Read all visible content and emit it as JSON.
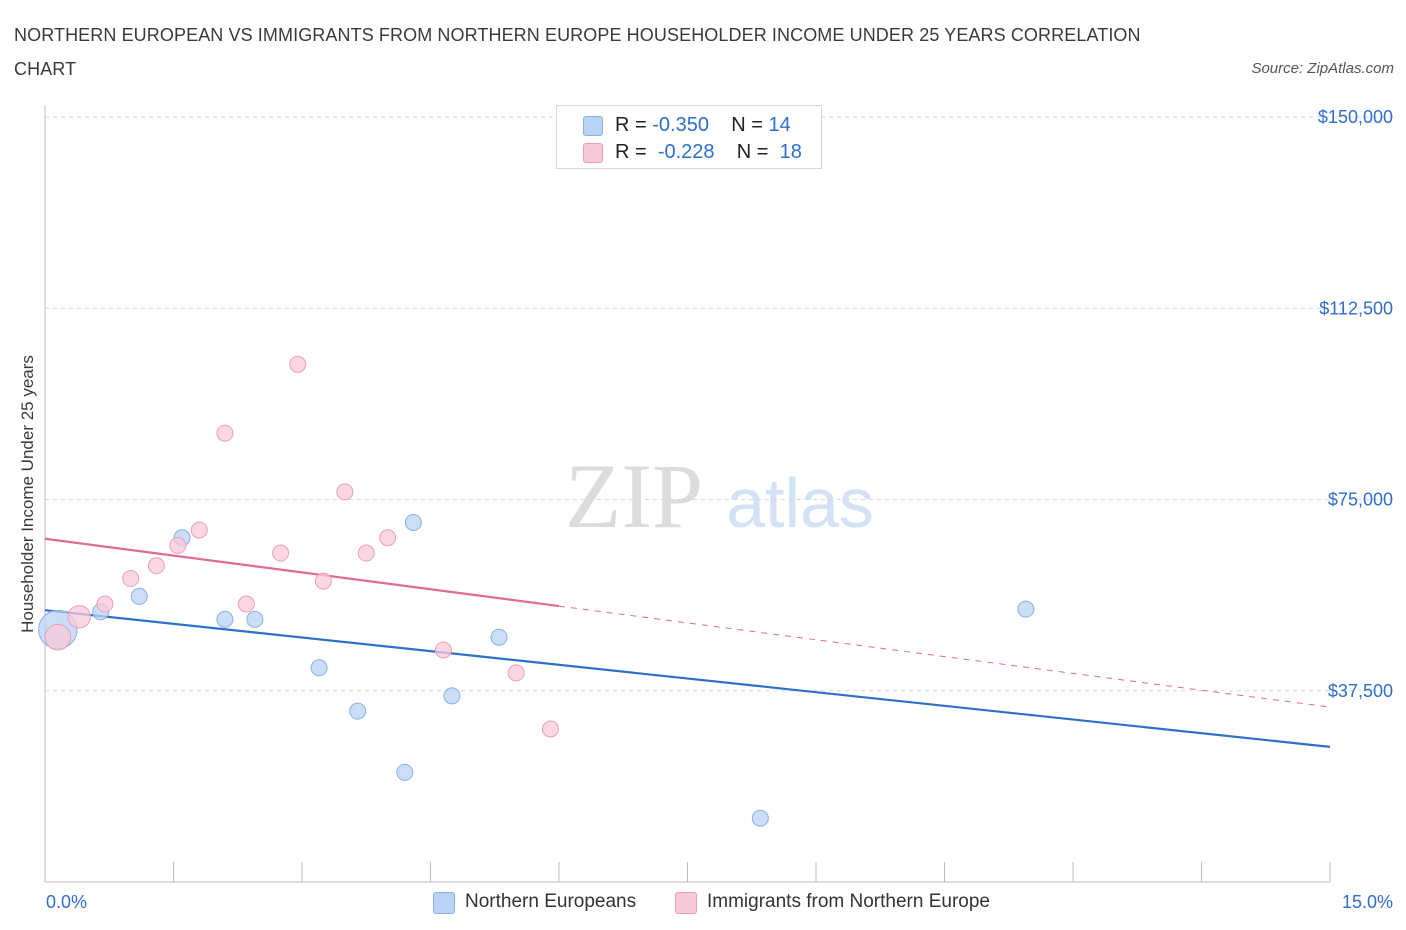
{
  "title": "NORTHERN EUROPEAN VS IMMIGRANTS FROM NORTHERN EUROPE HOUSEHOLDER INCOME UNDER 25 YEARS CORRELATION CHART",
  "source": "Source: ZipAtlas.com",
  "watermark": {
    "zip": "ZIP",
    "atlas": "atlas"
  },
  "legend_top": [
    {
      "r_label": "R = ",
      "r_value": "-0.350",
      "n_label": "N = ",
      "n_value": "14"
    },
    {
      "r_label": "R = ",
      "r_value": "-0.228",
      "n_label": "N = ",
      "n_value": "18"
    }
  ],
  "legend_bottom": [
    "Northern Europeans",
    "Immigrants from Northern Europe"
  ],
  "colors": {
    "blue": "#2f6fcc",
    "blue_fill": "#b9d3f5",
    "blue_stroke": "#8ab0e3",
    "pink": "#e06b93",
    "pink_fill": "#f8c9d8",
    "pink_stroke": "#eba0b8",
    "grid": "#d9d9d9",
    "axis_label": "#2f6fcc"
  },
  "chart_data": {
    "type": "scatter",
    "title": "NORTHERN EUROPEAN VS IMMIGRANTS FROM NORTHERN EUROPE HOUSEHOLDER INCOME UNDER 25 YEARS CORRELATION CHART",
    "xlabel": "",
    "ylabel": "Householder Income Under 25 years",
    "xlim": [
      0,
      15
    ],
    "ylim": [
      0,
      150000
    ],
    "x_tick_labels": [
      "0.0%",
      "15.0%"
    ],
    "y_ticks": [
      37500,
      75000,
      112500,
      150000
    ],
    "y_tick_labels": [
      "$37,500",
      "$75,000",
      "$112,500",
      "$150,000"
    ],
    "series": [
      {
        "name": "Northern Europeans",
        "color": "#2f6fcc",
        "points": [
          {
            "x": 0.15,
            "y": 49500,
            "size": 24
          },
          {
            "x": 0.65,
            "y": 53000,
            "size": 10
          },
          {
            "x": 1.1,
            "y": 56000,
            "size": 10
          },
          {
            "x": 1.6,
            "y": 67500,
            "size": 10
          },
          {
            "x": 2.1,
            "y": 51500,
            "size": 10
          },
          {
            "x": 2.45,
            "y": 51500,
            "size": 10
          },
          {
            "x": 3.2,
            "y": 42000,
            "size": 10
          },
          {
            "x": 3.65,
            "y": 33500,
            "size": 10
          },
          {
            "x": 4.2,
            "y": 21500,
            "size": 10
          },
          {
            "x": 4.3,
            "y": 70500,
            "size": 10
          },
          {
            "x": 4.75,
            "y": 36500,
            "size": 10
          },
          {
            "x": 5.3,
            "y": 48000,
            "size": 10
          },
          {
            "x": 8.35,
            "y": 12500,
            "size": 10
          },
          {
            "x": 11.45,
            "y": 53500,
            "size": 10
          }
        ],
        "trend": {
          "x0": 0.0,
          "y0": 53300,
          "x1": 15.0,
          "y1": 26500,
          "dashed_from": null
        }
      },
      {
        "name": "Immigrants from Northern Europe",
        "color": "#e06b93",
        "points": [
          {
            "x": 0.15,
            "y": 48000,
            "size": 16
          },
          {
            "x": 0.4,
            "y": 52000,
            "size": 14
          },
          {
            "x": 0.7,
            "y": 54500,
            "size": 10
          },
          {
            "x": 1.0,
            "y": 59500,
            "size": 10
          },
          {
            "x": 1.3,
            "y": 62000,
            "size": 10
          },
          {
            "x": 1.55,
            "y": 66000,
            "size": 10
          },
          {
            "x": 1.8,
            "y": 69000,
            "size": 10
          },
          {
            "x": 2.1,
            "y": 88000,
            "size": 10
          },
          {
            "x": 2.35,
            "y": 54500,
            "size": 10
          },
          {
            "x": 2.75,
            "y": 64500,
            "size": 10
          },
          {
            "x": 2.95,
            "y": 101500,
            "size": 10
          },
          {
            "x": 3.25,
            "y": 59000,
            "size": 10
          },
          {
            "x": 3.5,
            "y": 76500,
            "size": 10
          },
          {
            "x": 3.75,
            "y": 64500,
            "size": 10
          },
          {
            "x": 4.0,
            "y": 67500,
            "size": 10
          },
          {
            "x": 4.65,
            "y": 45500,
            "size": 10
          },
          {
            "x": 5.5,
            "y": 41000,
            "size": 10
          },
          {
            "x": 5.9,
            "y": 30000,
            "size": 10
          }
        ],
        "trend": {
          "x0": 0.0,
          "y0": 67300,
          "x1": 15.0,
          "y1": 34300,
          "dashed_from": 6.0
        }
      }
    ]
  }
}
